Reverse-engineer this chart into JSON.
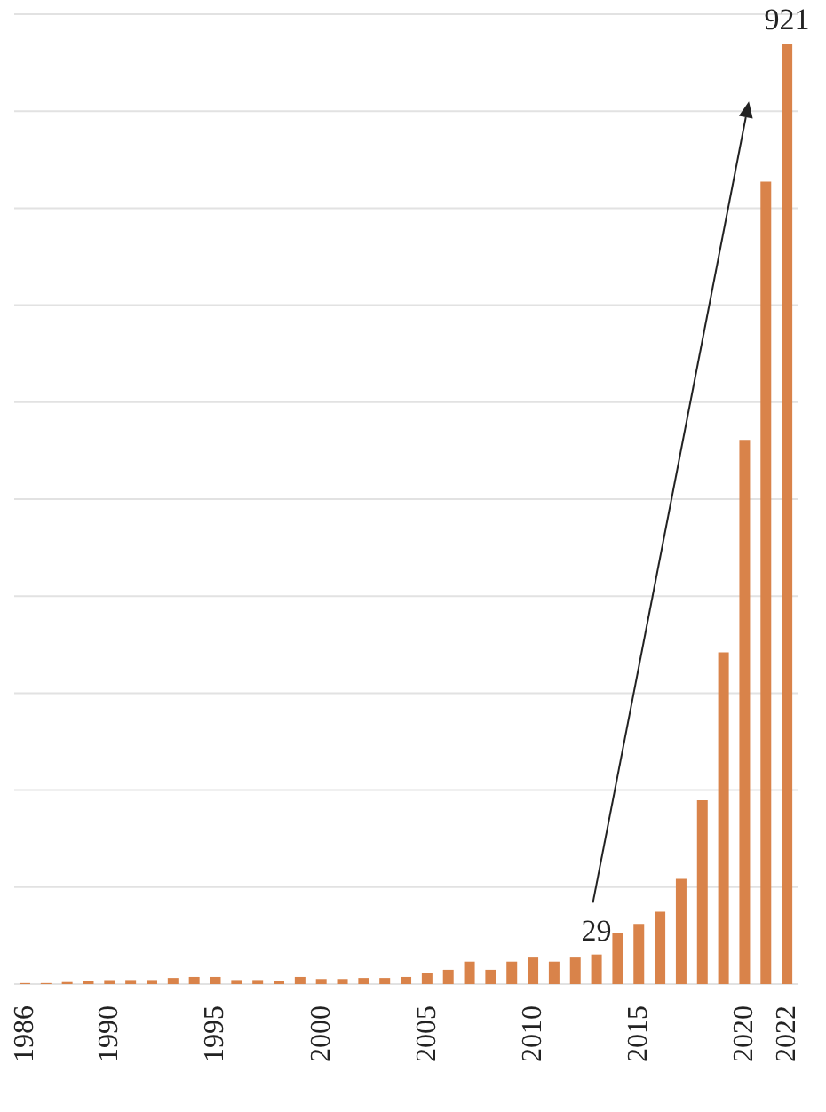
{
  "chart_data": {
    "type": "bar",
    "categories": [
      "1986",
      null,
      null,
      null,
      "1990",
      null,
      null,
      null,
      null,
      "1995",
      null,
      null,
      null,
      null,
      "2000",
      null,
      null,
      null,
      null,
      "2005",
      null,
      null,
      null,
      null,
      "2010",
      null,
      null,
      null,
      null,
      "2015",
      null,
      null,
      null,
      null,
      "2020",
      null,
      "2022"
    ],
    "values": [
      1,
      1,
      2,
      3,
      4,
      4,
      4,
      6,
      7,
      7,
      4,
      4,
      3,
      7,
      5,
      5,
      6,
      6,
      7,
      11,
      14,
      22,
      14,
      22,
      26,
      22,
      26,
      29,
      50,
      59,
      71,
      103,
      180,
      325,
      533,
      786,
      921
    ],
    "value_labels": [
      null,
      null,
      null,
      null,
      null,
      null,
      null,
      null,
      null,
      null,
      null,
      null,
      null,
      null,
      null,
      null,
      null,
      null,
      null,
      null,
      null,
      null,
      null,
      null,
      null,
      null,
      null,
      "29",
      null,
      null,
      null,
      null,
      null,
      null,
      null,
      null,
      "921"
    ],
    "color": "#d9834a",
    "tick_labels": "x",
    "grid": "y"
  }
}
